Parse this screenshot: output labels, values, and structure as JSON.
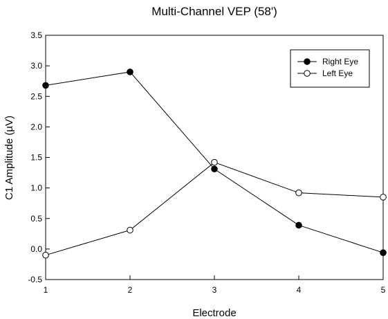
{
  "chart_data": {
    "type": "line",
    "title": "Multi-Channel VEP (58')",
    "xlabel": "Electrode",
    "ylabel": "C1 Amplitude (µV)",
    "x": [
      1,
      2,
      3,
      4,
      5
    ],
    "xlim": [
      1,
      5
    ],
    "ylim": [
      -0.5,
      3.5
    ],
    "xticks": [
      "1",
      "2",
      "3",
      "4",
      "5"
    ],
    "yticks": [
      "-0.5",
      "0.0",
      "0.5",
      "1.0",
      "1.5",
      "2.0",
      "2.5",
      "3.0",
      "3.5"
    ],
    "grid": false,
    "legend_position": "top-right",
    "series": [
      {
        "name": "Right Eye",
        "marker": "filled-circle",
        "color": "#000000",
        "values": [
          2.68,
          2.9,
          1.31,
          0.39,
          -0.06
        ]
      },
      {
        "name": "Left Eye",
        "marker": "open-circle",
        "color": "#000000",
        "values": [
          -0.1,
          0.31,
          1.42,
          0.92,
          0.85
        ]
      }
    ]
  }
}
